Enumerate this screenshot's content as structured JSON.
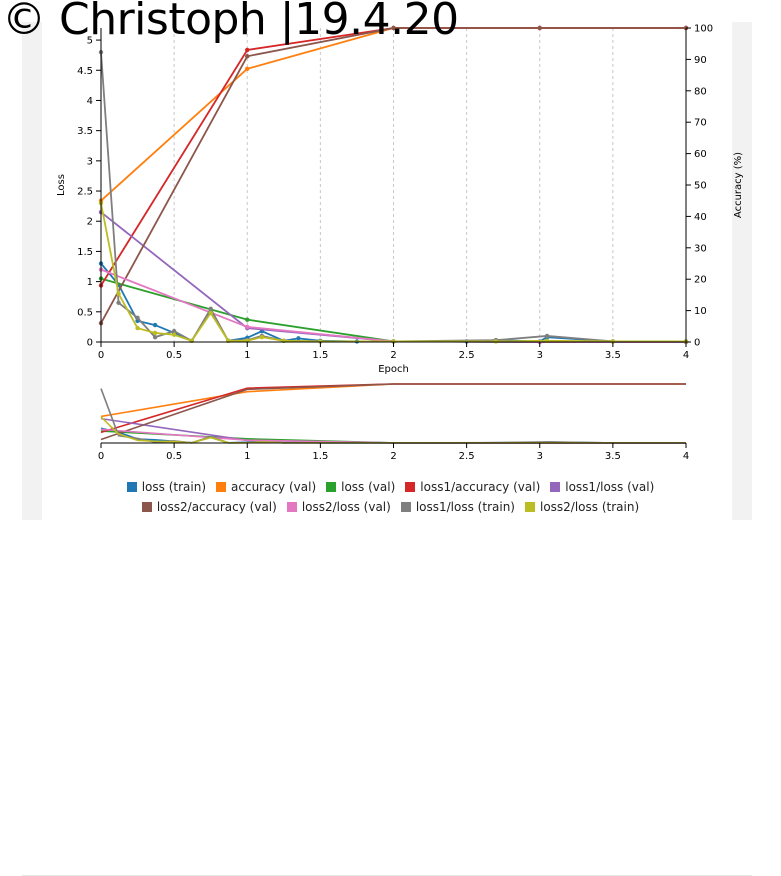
{
  "watermark": "© Christoph  |19.4.20",
  "chart_data": {
    "type": "line",
    "xlabel": "Epoch",
    "ylabel_left": "Loss",
    "ylabel_right": "Accuracy (%)",
    "xlim": [
      0,
      4
    ],
    "ylim_left": [
      0,
      5.2
    ],
    "ylim_right": [
      0,
      100
    ],
    "x_ticks": [
      "0",
      "0.5",
      "1",
      "1.5",
      "2",
      "2.5",
      "3",
      "3.5",
      "4"
    ],
    "y_ticks_left": [
      "0",
      "0.5",
      "1",
      "1.5",
      "2",
      "2.5",
      "3",
      "3.5",
      "4",
      "4.5",
      "5"
    ],
    "y_ticks_right": [
      "0",
      "10",
      "20",
      "30",
      "40",
      "50",
      "60",
      "70",
      "80",
      "90",
      "100"
    ],
    "grid_x": "dashed",
    "legend_position": "bottom",
    "series": [
      {
        "name": "loss (train)",
        "color": "#1f77b4",
        "axis": "left",
        "x": [
          0,
          0.12,
          0.25,
          0.37,
          0.5,
          0.62,
          0.75,
          0.87,
          1.0,
          1.1,
          1.25,
          1.35,
          1.5,
          1.75,
          2.0,
          2.5,
          2.7,
          3.0,
          3.05,
          3.5,
          4.0
        ],
        "y": [
          1.3,
          0.95,
          0.35,
          0.28,
          0.15,
          0.02,
          0.5,
          0.02,
          0.07,
          0.18,
          0.02,
          0.06,
          0.02,
          0.01,
          0.01,
          0.01,
          0.03,
          0.01,
          0.08,
          0.01,
          0.01
        ]
      },
      {
        "name": "accuracy (val)",
        "color": "#ff7f0e",
        "axis": "right",
        "x": [
          0,
          1,
          2,
          3,
          4
        ],
        "y": [
          45,
          87,
          100,
          100,
          100
        ]
      },
      {
        "name": "loss (val)",
        "color": "#2ca02c",
        "axis": "left",
        "x": [
          0,
          1,
          2,
          3,
          4
        ],
        "y": [
          1.05,
          0.37,
          0.01,
          0.0,
          0.0
        ]
      },
      {
        "name": "loss1/accuracy (val)",
        "color": "#d62728",
        "axis": "right",
        "x": [
          0,
          1,
          2,
          3,
          4
        ],
        "y": [
          18,
          93,
          100,
          100,
          100
        ]
      },
      {
        "name": "loss1/loss (val)",
        "color": "#9467bd",
        "axis": "left",
        "x": [
          0,
          1,
          2,
          3,
          4
        ],
        "y": [
          2.15,
          0.23,
          0.01,
          0.0,
          0.0
        ]
      },
      {
        "name": "loss2/accuracy (val)",
        "color": "#8c564b",
        "axis": "right",
        "x": [
          0,
          1,
          2,
          3,
          4
        ],
        "y": [
          6,
          91,
          100,
          100,
          100
        ]
      },
      {
        "name": "loss2/loss (val)",
        "color": "#e377c2",
        "axis": "left",
        "x": [
          0,
          1,
          2,
          3,
          4
        ],
        "y": [
          1.2,
          0.25,
          0.01,
          0.0,
          0.0
        ]
      },
      {
        "name": "loss1/loss (train)",
        "color": "#7f7f7f",
        "axis": "left",
        "x": [
          0,
          0.12,
          0.25,
          0.37,
          0.5,
          0.62,
          0.75,
          0.87,
          1.0,
          1.1,
          1.25,
          1.5,
          2.0,
          2.7,
          3.05,
          3.5,
          4.0
        ],
        "y": [
          4.8,
          0.65,
          0.4,
          0.08,
          0.18,
          0.02,
          0.55,
          0.02,
          0.03,
          0.1,
          0.02,
          0.01,
          0.01,
          0.03,
          0.1,
          0.01,
          0.01
        ]
      },
      {
        "name": "loss2/loss (train)",
        "color": "#bcbd22",
        "axis": "left",
        "x": [
          0,
          0.12,
          0.25,
          0.37,
          0.5,
          0.62,
          0.75,
          0.87,
          1.0,
          1.1,
          1.25,
          1.5,
          2.0,
          2.7,
          3.05,
          3.5,
          4.0
        ],
        "y": [
          2.3,
          0.8,
          0.23,
          0.15,
          0.12,
          0.02,
          0.48,
          0.02,
          0.02,
          0.08,
          0.02,
          0.01,
          0.01,
          0.01,
          0.02,
          0.01,
          0.01
        ]
      }
    ],
    "legend_rows": [
      [
        "loss (train)",
        "accuracy (val)",
        "loss (val)",
        "loss1/accuracy (val)",
        "loss1/loss (val)"
      ],
      [
        "loss2/accuracy (val)",
        "loss2/loss (val)",
        "loss1/loss (train)",
        "loss2/loss (train)"
      ]
    ]
  }
}
